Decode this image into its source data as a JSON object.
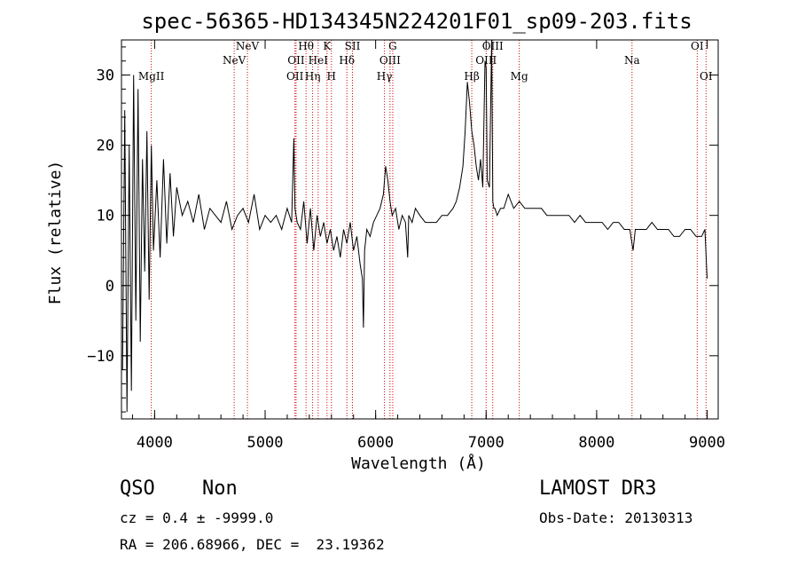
{
  "chart_data": {
    "type": "line",
    "title": "spec-56365-HD134345N224201F01_sp09-203.fits",
    "xlabel": "Wavelength (Å)",
    "ylabel": "Flux (relative)",
    "xlim": [
      3700,
      9100
    ],
    "ylim": [
      -19,
      35
    ],
    "xticks": [
      4000,
      5000,
      6000,
      7000,
      8000,
      9000
    ],
    "yticks": [
      -10,
      0,
      10,
      20,
      30
    ],
    "grid": false,
    "series": [
      {
        "name": "flux",
        "x": [
          3710,
          3730,
          3750,
          3770,
          3790,
          3810,
          3830,
          3850,
          3870,
          3890,
          3910,
          3930,
          3950,
          3970,
          3990,
          4020,
          4050,
          4080,
          4110,
          4140,
          4170,
          4200,
          4250,
          4300,
          4350,
          4400,
          4450,
          4500,
          4550,
          4600,
          4650,
          4700,
          4750,
          4800,
          4850,
          4900,
          4950,
          5000,
          5050,
          5100,
          5150,
          5200,
          5240,
          5260,
          5270,
          5290,
          5320,
          5350,
          5380,
          5410,
          5440,
          5470,
          5500,
          5530,
          5560,
          5590,
          5620,
          5650,
          5680,
          5710,
          5740,
          5770,
          5800,
          5830,
          5860,
          5880,
          5890,
          5900,
          5920,
          5950,
          5980,
          6010,
          6040,
          6070,
          6090,
          6110,
          6130,
          6150,
          6180,
          6210,
          6240,
          6270,
          6290,
          6300,
          6330,
          6360,
          6400,
          6450,
          6500,
          6550,
          6600,
          6650,
          6700,
          6730,
          6760,
          6790,
          6810,
          6830,
          6850,
          6870,
          6890,
          6910,
          6930,
          6950,
          6970,
          6990,
          7000,
          7010,
          7030,
          7050,
          7060,
          7070,
          7080,
          7100,
          7130,
          7160,
          7200,
          7250,
          7300,
          7350,
          7400,
          7450,
          7500,
          7550,
          7600,
          7650,
          7700,
          7750,
          7800,
          7850,
          7900,
          7950,
          8000,
          8050,
          8100,
          8150,
          8200,
          8250,
          8300,
          8330,
          8350,
          8400,
          8450,
          8500,
          8550,
          8600,
          8650,
          8700,
          8750,
          8800,
          8850,
          8900,
          8950,
          8980,
          9000
        ],
        "y": [
          -12,
          25,
          -18,
          20,
          -15,
          30,
          -5,
          28,
          -8,
          18,
          2,
          22,
          -2,
          20,
          5,
          15,
          4,
          18,
          6,
          16,
          7,
          14,
          10,
          12,
          9,
          13,
          8,
          11,
          10,
          9,
          12,
          8,
          10,
          11,
          9,
          13,
          8,
          10,
          9,
          10,
          8,
          11,
          9,
          21,
          11,
          9,
          8,
          12,
          6,
          11,
          5,
          10,
          7,
          9,
          6,
          8,
          5,
          7,
          4,
          8,
          6,
          9,
          5,
          7,
          3,
          1,
          -6,
          5,
          8,
          7,
          9,
          10,
          11,
          13,
          17,
          15,
          12,
          10,
          11,
          8,
          10,
          9,
          4,
          10,
          9,
          11,
          10,
          9,
          9,
          9,
          10,
          10,
          11,
          12,
          14,
          17,
          22,
          29,
          26,
          22,
          20,
          17,
          15,
          18,
          14,
          32,
          31,
          15,
          14,
          35,
          12,
          11,
          11,
          10,
          11,
          11,
          13,
          11,
          12,
          11,
          11,
          11,
          11,
          10,
          10,
          10,
          10,
          10,
          9,
          10,
          9,
          9,
          9,
          9,
          8,
          9,
          9,
          8,
          8,
          5,
          8,
          8,
          8,
          9,
          8,
          8,
          8,
          7,
          7,
          8,
          8,
          7,
          7,
          8,
          1
        ]
      }
    ],
    "lines": [
      {
        "label": "MgII",
        "x": 3970
      },
      {
        "label": "NeV",
        "x": 4720
      },
      {
        "label": "NeV",
        "x": 4840
      },
      {
        "label": "OII",
        "x": 5270
      },
      {
        "label": "OII",
        "x": 5280
      },
      {
        "label": "Hθ",
        "x": 5370
      },
      {
        "label": "Hη",
        "x": 5430
      },
      {
        "label": "HeI",
        "x": 5480
      },
      {
        "label": "K",
        "x": 5560
      },
      {
        "label": "H",
        "x": 5600
      },
      {
        "label": "Hδ",
        "x": 5740
      },
      {
        "label": "SII",
        "x": 5790
      },
      {
        "label": "Hγ",
        "x": 6080
      },
      {
        "label": "OIII",
        "x": 6130
      },
      {
        "label": "G",
        "x": 6155
      },
      {
        "label": "Hβ",
        "x": 6870
      },
      {
        "label": "OIII",
        "x": 7000
      },
      {
        "label": "OIII",
        "x": 7060
      },
      {
        "label": "Mg",
        "x": 7300
      },
      {
        "label": "Na",
        "x": 8320
      },
      {
        "label": "OI",
        "x": 8910
      },
      {
        "label": "OI",
        "x": 8990
      }
    ]
  },
  "info": {
    "class": "QSO",
    "subclass": "Non",
    "cz": "cz = 0.4 ± -9999.0",
    "radec": "RA = 206.68966, DEC =  23.19362",
    "survey": "LAMOST DR3",
    "obsdate": "Obs-Date: 20130313"
  },
  "colors": {
    "line": "#000000",
    "marker": "#cc0000"
  }
}
